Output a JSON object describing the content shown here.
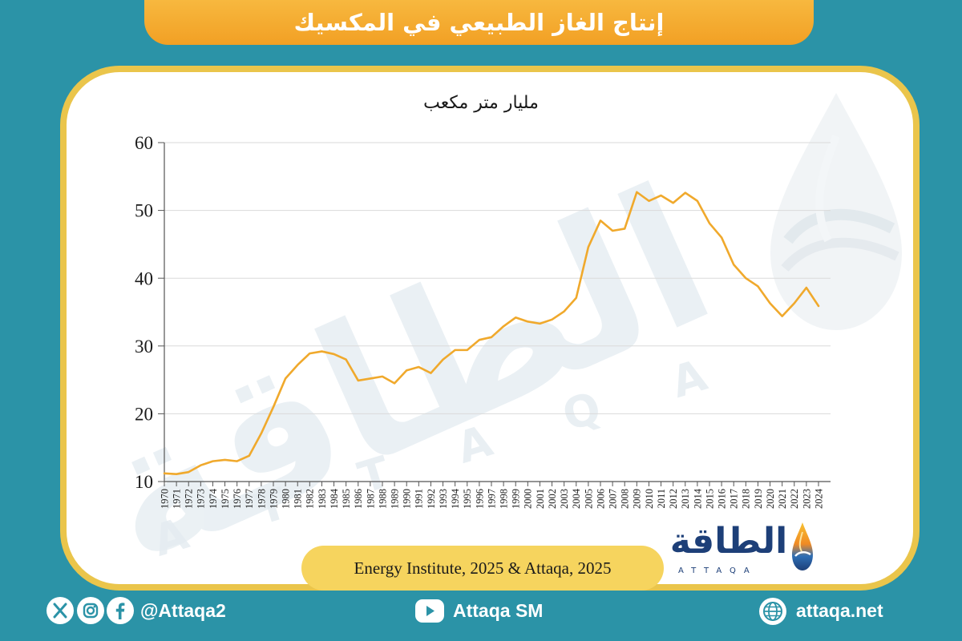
{
  "colors": {
    "background": "#2b93a7",
    "banner": "#f3a427",
    "panel_border": "#eac54b",
    "series_line": "#f0a92c",
    "source_tab": "#f6d45e",
    "logo_blue": "#1d3f78",
    "footer_text": "#ffffff"
  },
  "chart_data": {
    "type": "line",
    "title": "إنتاج الغاز الطبيعي في المكسيك",
    "ylabel": "مليار متر مكعب",
    "xlabel": "",
    "x": [
      1970,
      1971,
      1972,
      1973,
      1974,
      1975,
      1976,
      1977,
      1978,
      1979,
      1980,
      1981,
      1982,
      1983,
      1984,
      1985,
      1986,
      1987,
      1988,
      1989,
      1990,
      1991,
      1992,
      1993,
      1994,
      1995,
      1996,
      1997,
      1998,
      1999,
      2000,
      2001,
      2002,
      2003,
      2004,
      2005,
      2006,
      2007,
      2008,
      2009,
      2010,
      2011,
      2012,
      2013,
      2014,
      2015,
      2016,
      2017,
      2018,
      2019,
      2020,
      2021,
      2022,
      2023,
      2024
    ],
    "series": [
      {
        "values": [
          11.2,
          11.1,
          11.4,
          12.4,
          13.0,
          13.2,
          13.0,
          13.8,
          17.1,
          21.0,
          25.2,
          27.2,
          28.9,
          29.2,
          28.8,
          28.0,
          24.9,
          25.2,
          25.5,
          24.5,
          26.4,
          26.9,
          26.0,
          28.0,
          29.4,
          29.4,
          30.9,
          31.3,
          32.9,
          34.2,
          33.6,
          33.3,
          33.9,
          35.1,
          37.1,
          44.6,
          48.5,
          47.0,
          47.3,
          52.7,
          51.4,
          52.2,
          51.1,
          52.6,
          51.4,
          48.1,
          46.0,
          42.0,
          40.0,
          38.8,
          36.3,
          34.4,
          36.3,
          38.6,
          35.9
        ]
      }
    ],
    "ylim": [
      10,
      60
    ],
    "yticks": [
      10,
      20,
      30,
      40,
      50,
      60
    ],
    "grid": "horizontal",
    "legend": "none"
  },
  "source": {
    "text": "Energy Institute, 2025 & Attaqa, 2025"
  },
  "logo": {
    "arabic": "الطاقة",
    "latin": "ATTAQA",
    "icon": "flame-drop-icon"
  },
  "watermark": {
    "arabic": "الطاقة",
    "latin": "ATTAQA",
    "icon": "flame-drop-icon"
  },
  "footer": {
    "social": {
      "icons": [
        "x-icon",
        "instagram-icon",
        "facebook-icon"
      ],
      "handle": "@Attaqa2"
    },
    "youtube": {
      "icon": "youtube-icon",
      "label": "Attaqa SM"
    },
    "website": {
      "icon": "globe-icon",
      "label": "attaqa.net"
    }
  }
}
